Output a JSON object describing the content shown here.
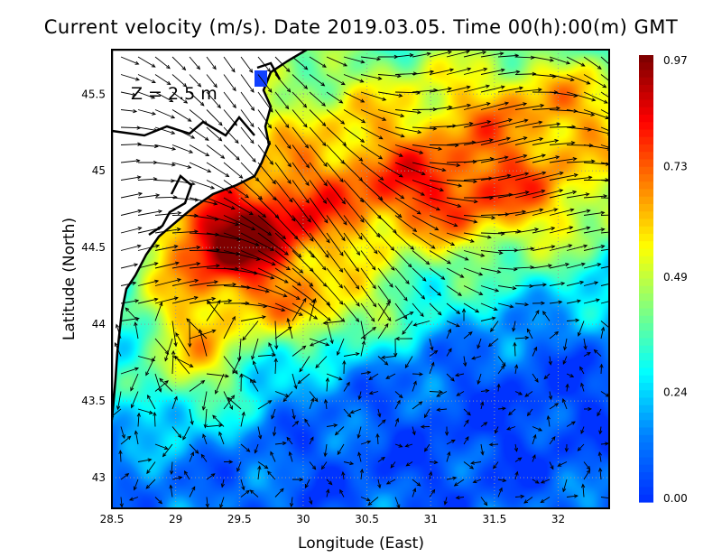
{
  "title": "Current velocity (m/s). Date 2019.03.05. Time 00(h):00(m) GMT",
  "depth_label": "Z = 2.5 m",
  "chart_data": {
    "type": "heatmap",
    "overlay": "vector arrows",
    "xlabel": "Longitude (East)",
    "ylabel": "Latitude (North)",
    "xlim": [
      28.5,
      32.4
    ],
    "ylim": [
      42.8,
      45.79
    ],
    "xticks": [
      "28.5",
      "29",
      "29.5",
      "30",
      "30.5",
      "31",
      "31.5",
      "32"
    ],
    "yticks": [
      "45.5",
      "45",
      "44.5",
      "44",
      "43.5",
      "43"
    ],
    "grid": true,
    "colorbar": {
      "ticks": [
        "0.97",
        "0.73",
        "0.49",
        "0.24",
        "0.00"
      ],
      "range": [
        0.0,
        0.97
      ],
      "colors": [
        "#0033ff",
        "#0080ff",
        "#00ffff",
        "#80ff80",
        "#ffff00",
        "#ff8000",
        "#ff0000",
        "#800000"
      ]
    }
  }
}
